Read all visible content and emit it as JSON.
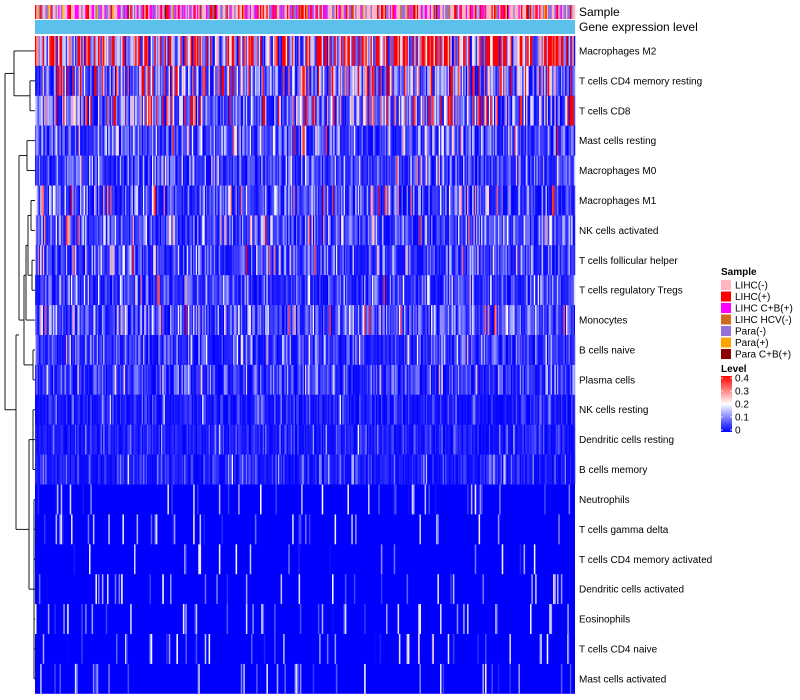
{
  "chart_data": {
    "type": "heatmap",
    "title": "",
    "annotation_labels": [
      "Sample",
      "Gene expression level"
    ],
    "rows": [
      {
        "label": "Macrophages M2",
        "mean_level": 0.33
      },
      {
        "label": "T cells CD4 memory resting",
        "mean_level": 0.17
      },
      {
        "label": "T cells CD8",
        "mean_level": 0.14
      },
      {
        "label": "Mast cells resting",
        "mean_level": 0.09
      },
      {
        "label": "Macrophages M0",
        "mean_level": 0.06
      },
      {
        "label": "Macrophages M1",
        "mean_level": 0.08
      },
      {
        "label": "NK cells activated",
        "mean_level": 0.08
      },
      {
        "label": "T cells follicular helper",
        "mean_level": 0.07
      },
      {
        "label": "T cells regulatory  Tregs",
        "mean_level": 0.06
      },
      {
        "label": "Monocytes",
        "mean_level": 0.09
      },
      {
        "label": "B cells naive",
        "mean_level": 0.05
      },
      {
        "label": "Plasma cells",
        "mean_level": 0.05
      },
      {
        "label": "NK cells resting",
        "mean_level": 0.03
      },
      {
        "label": "Dendritic cells resting",
        "mean_level": 0.03
      },
      {
        "label": "B cells memory",
        "mean_level": 0.03
      },
      {
        "label": "Neutrophils",
        "mean_level": 0.015
      },
      {
        "label": "T cells gamma delta",
        "mean_level": 0.008
      },
      {
        "label": "T cells CD4 memory activated",
        "mean_level": 0.008
      },
      {
        "label": "Dendritic cells activated",
        "mean_level": 0.006
      },
      {
        "label": "Eosinophils",
        "mean_level": 0.004
      },
      {
        "label": "T cells CD4 naive",
        "mean_level": 0.008
      },
      {
        "label": "Mast cells activated",
        "mean_level": 0.01
      }
    ],
    "n_samples": 420,
    "sample_legend": {
      "title": "Sample",
      "items": [
        {
          "label": "LIHC(-)",
          "color": "#ffb6c1"
        },
        {
          "label": "LIHC(+)",
          "color": "#ff0000"
        },
        {
          "label": "LIHC C+B(+)",
          "color": "#ff00ff"
        },
        {
          "label": "LIHC HCV(-)",
          "color": "#d2691e"
        },
        {
          "label": "Para(-)",
          "color": "#9370db"
        },
        {
          "label": "Para(+)",
          "color": "#ffa500"
        },
        {
          "label": "Para C+B(+)",
          "color": "#8b0000"
        }
      ]
    },
    "level_legend": {
      "title": "Level",
      "range": [
        0,
        0.4
      ],
      "ticks": [
        "0.4",
        "0.3",
        "0.2",
        "0.1",
        "0"
      ],
      "colors": {
        "low": "#0000ff",
        "mid": "#ffffff",
        "high": "#ff0000"
      }
    },
    "gene_expression_color": "#5bc0eb"
  }
}
